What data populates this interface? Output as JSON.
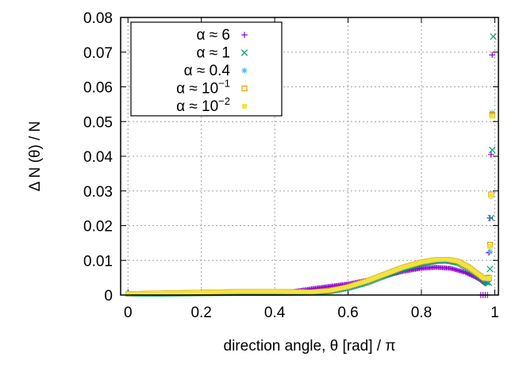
{
  "chart_data": {
    "type": "scatter",
    "xlabel": "direction angle, θ [rad] / π",
    "ylabel": "Δ N (θ) / N",
    "xlim": [
      -0.02,
      1.01
    ],
    "ylim": [
      0,
      0.08
    ],
    "x_ticks": [
      0,
      0.2,
      0.4,
      0.6,
      0.8,
      1
    ],
    "x_tick_labels": [
      "0",
      "0.2",
      "0.4",
      "0.6",
      "0.8",
      "1"
    ],
    "y_ticks": [
      0,
      0.01,
      0.02,
      0.03,
      0.04,
      0.05,
      0.06,
      0.07,
      0.08
    ],
    "y_tick_labels": [
      "0",
      "0.01",
      "0.02",
      "0.03",
      "0.04",
      "0.05",
      "0.06",
      "0.07",
      "0.08"
    ],
    "grid": true,
    "legend_position": "top-left",
    "series": [
      {
        "name_prefix": "α ≈ 6",
        "name_sup": "",
        "color": "#9400d3",
        "marker": "plus",
        "peak_points": [
          [
            0.962,
            0.0
          ],
          [
            0.968,
            0.0
          ],
          [
            0.974,
            0.0
          ],
          [
            0.98,
            0.0
          ],
          [
            0.984,
            0.0122
          ],
          [
            0.987,
            0.0222
          ],
          [
            0.99,
            0.0405
          ],
          [
            0.993,
            0.0692
          ]
        ],
        "profile": [
          [
            0,
            0.0003
          ],
          [
            0.1,
            0.0004
          ],
          [
            0.2,
            0.0006
          ],
          [
            0.3,
            0.0007
          ],
          [
            0.4,
            0.0008
          ],
          [
            0.45,
            0.001
          ],
          [
            0.5,
            0.0018
          ],
          [
            0.55,
            0.0025
          ],
          [
            0.6,
            0.0032
          ],
          [
            0.65,
            0.0042
          ],
          [
            0.7,
            0.0055
          ],
          [
            0.75,
            0.0068
          ],
          [
            0.8,
            0.0077
          ],
          [
            0.84,
            0.008
          ],
          [
            0.88,
            0.0077
          ],
          [
            0.92,
            0.0065
          ],
          [
            0.95,
            0.005
          ],
          [
            0.965,
            0.004
          ],
          [
            0.975,
            0.003
          ]
        ]
      },
      {
        "name_prefix": "α ≈ 1",
        "name_sup": "",
        "color": "#009e73",
        "marker": "cross",
        "peak_points": [
          [
            0.984,
            0.0035
          ],
          [
            0.987,
            0.0075
          ],
          [
            0.99,
            0.0222
          ],
          [
            0.993,
            0.0418
          ],
          [
            0.996,
            0.0745
          ]
        ],
        "profile": [
          [
            0,
            0.0003
          ],
          [
            0.1,
            0.0003
          ],
          [
            0.2,
            0.0004
          ],
          [
            0.3,
            0.0005
          ],
          [
            0.4,
            0.0005
          ],
          [
            0.5,
            0.0006
          ],
          [
            0.55,
            0.001
          ],
          [
            0.6,
            0.002
          ],
          [
            0.65,
            0.0035
          ],
          [
            0.7,
            0.0055
          ],
          [
            0.75,
            0.0075
          ],
          [
            0.8,
            0.009
          ],
          [
            0.84,
            0.0097
          ],
          [
            0.87,
            0.0098
          ],
          [
            0.9,
            0.0092
          ],
          [
            0.93,
            0.0075
          ],
          [
            0.955,
            0.0055
          ],
          [
            0.97,
            0.004
          ],
          [
            0.98,
            0.0035
          ]
        ]
      },
      {
        "name_prefix": "α ≈ 0.4",
        "name_sup": "",
        "color": "#56b4e9",
        "marker": "star",
        "peak_points": [
          [
            0.984,
            0.0045
          ],
          [
            0.987,
            0.0125
          ],
          [
            0.99,
            0.0285
          ],
          [
            0.993,
            0.0525
          ]
        ],
        "profile": [
          [
            0,
            0.0004
          ],
          [
            0.1,
            0.0005
          ],
          [
            0.2,
            0.0007
          ],
          [
            0.3,
            0.0009
          ],
          [
            0.4,
            0.0009
          ],
          [
            0.5,
            0.0008
          ],
          [
            0.55,
            0.0012
          ],
          [
            0.6,
            0.0022
          ],
          [
            0.65,
            0.0038
          ],
          [
            0.7,
            0.0058
          ],
          [
            0.75,
            0.0078
          ],
          [
            0.8,
            0.0093
          ],
          [
            0.84,
            0.01
          ],
          [
            0.87,
            0.0101
          ],
          [
            0.9,
            0.0095
          ],
          [
            0.93,
            0.0078
          ],
          [
            0.955,
            0.0058
          ],
          [
            0.97,
            0.0045
          ],
          [
            0.98,
            0.0045
          ]
        ]
      },
      {
        "name_prefix": "α ≈ 10",
        "name_sup": "−1",
        "color": "#e69f00",
        "marker": "square",
        "peak_points": [
          [
            0.984,
            0.005
          ],
          [
            0.987,
            0.0145
          ],
          [
            0.99,
            0.029
          ],
          [
            0.993,
            0.052
          ]
        ],
        "profile": [
          [
            0,
            0.0004
          ],
          [
            0.1,
            0.0006
          ],
          [
            0.2,
            0.0008
          ],
          [
            0.3,
            0.001
          ],
          [
            0.4,
            0.001
          ],
          [
            0.5,
            0.0009
          ],
          [
            0.55,
            0.0013
          ],
          [
            0.6,
            0.0024
          ],
          [
            0.65,
            0.004
          ],
          [
            0.7,
            0.006
          ],
          [
            0.75,
            0.008
          ],
          [
            0.8,
            0.0095
          ],
          [
            0.84,
            0.0102
          ],
          [
            0.87,
            0.0103
          ],
          [
            0.9,
            0.0097
          ],
          [
            0.93,
            0.008
          ],
          [
            0.955,
            0.006
          ],
          [
            0.97,
            0.0048
          ],
          [
            0.98,
            0.005
          ]
        ]
      },
      {
        "name_prefix": "α ≈ 10",
        "name_sup": "−2",
        "color": "#f0e442",
        "marker": "filled-square",
        "peak_points": [
          [
            0.984,
            0.0048
          ],
          [
            0.987,
            0.014
          ],
          [
            0.99,
            0.0285
          ],
          [
            0.993,
            0.0515
          ]
        ],
        "profile": [
          [
            0,
            0.0004
          ],
          [
            0.1,
            0.0006
          ],
          [
            0.2,
            0.0008
          ],
          [
            0.3,
            0.001
          ],
          [
            0.4,
            0.001
          ],
          [
            0.5,
            0.0009
          ],
          [
            0.55,
            0.0013
          ],
          [
            0.6,
            0.0024
          ],
          [
            0.65,
            0.004
          ],
          [
            0.7,
            0.006
          ],
          [
            0.75,
            0.008
          ],
          [
            0.8,
            0.0095
          ],
          [
            0.84,
            0.0102
          ],
          [
            0.87,
            0.0103
          ],
          [
            0.9,
            0.0097
          ],
          [
            0.93,
            0.008
          ],
          [
            0.955,
            0.006
          ],
          [
            0.97,
            0.0048
          ],
          [
            0.98,
            0.0048
          ]
        ]
      }
    ]
  }
}
